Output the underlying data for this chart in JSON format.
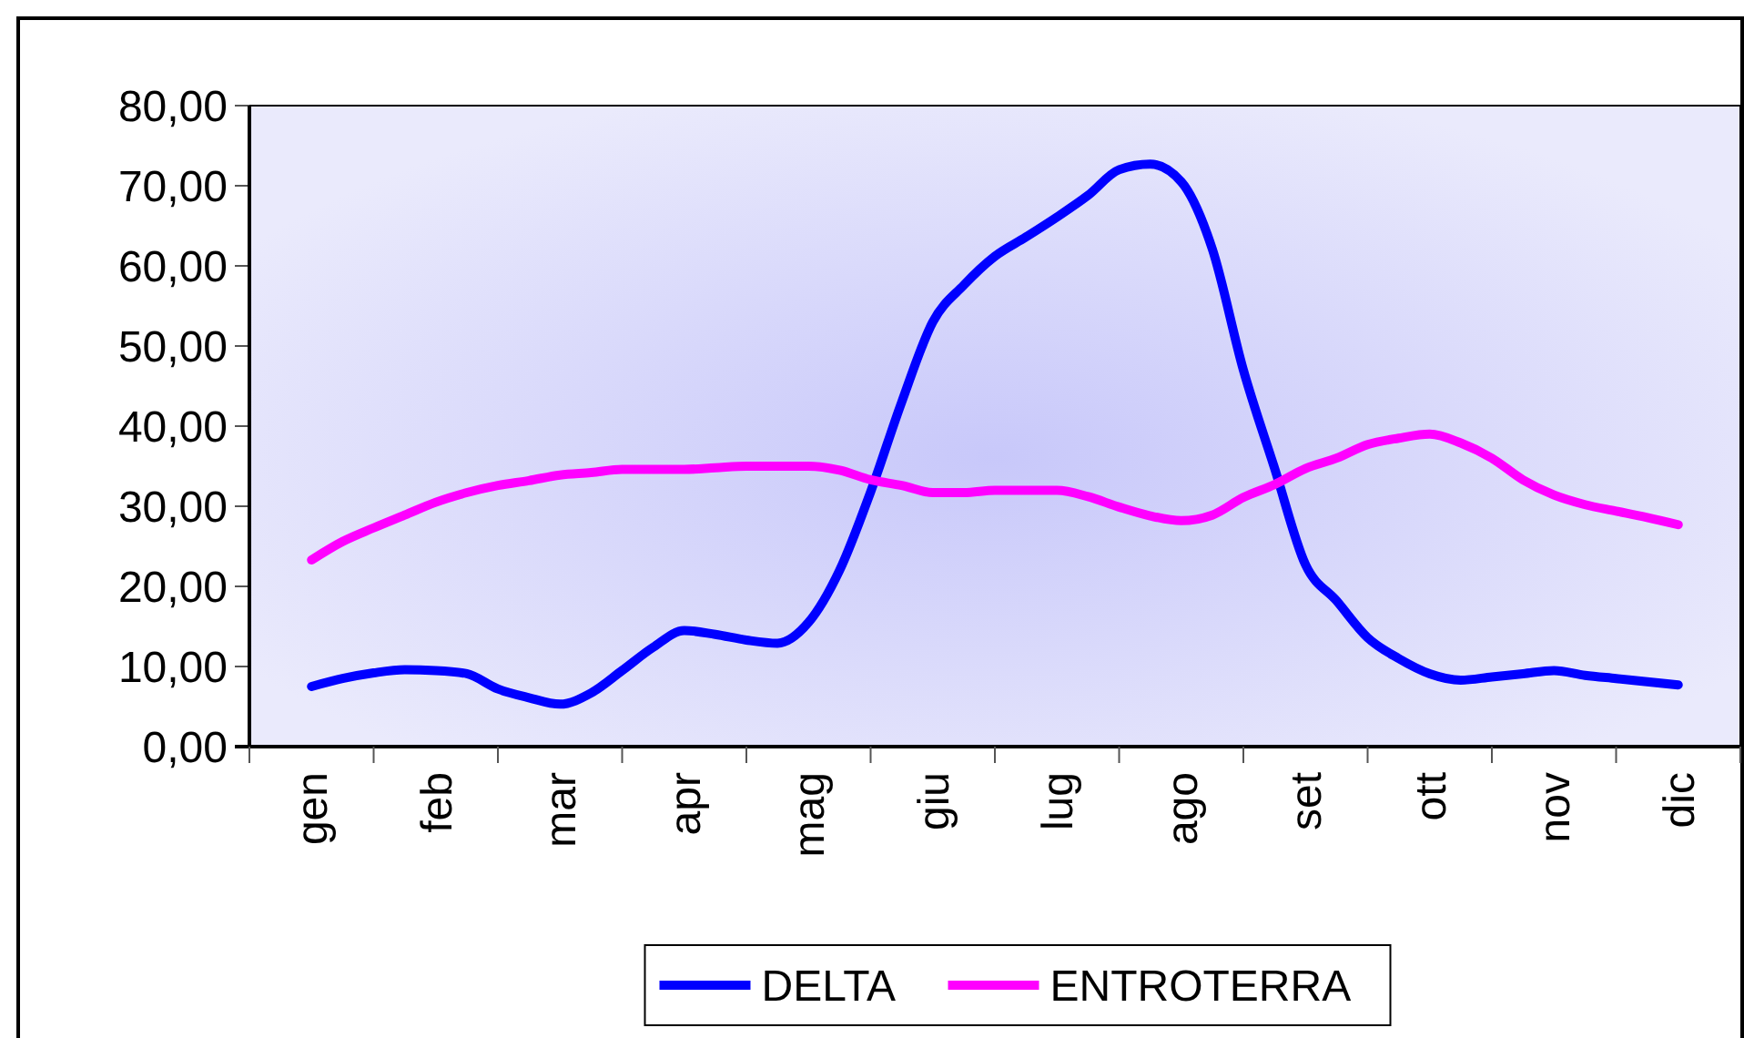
{
  "chart_data": {
    "type": "line",
    "categories": [
      "gen",
      null,
      null,
      null,
      "feb",
      null,
      null,
      null,
      "mar",
      null,
      null,
      null,
      "apr",
      null,
      null,
      null,
      "mag",
      null,
      null,
      null,
      "giu",
      null,
      null,
      null,
      "lug",
      null,
      null,
      null,
      "ago",
      null,
      null,
      null,
      "set",
      null,
      null,
      null,
      "ott",
      null,
      null,
      null,
      "nov",
      null,
      null,
      null,
      "dic"
    ],
    "series": [
      {
        "name": "DELTA",
        "color": "#0000ff",
        "values": [
          7.5,
          8.5,
          9.2,
          9.6,
          9.5,
          9.1,
          7.2,
          6.1,
          5.3,
          6.7,
          9.5,
          12.4,
          14.5,
          14.0,
          13.3,
          12.9,
          15.5,
          22.0,
          31.8,
          43.0,
          53.0,
          57.6,
          61.2,
          63.6,
          66.1,
          68.8,
          72.0,
          72.7,
          70.5,
          62.1,
          47.0,
          34.8,
          22.7,
          18.2,
          13.6,
          11.0,
          9.1,
          8.3,
          8.7,
          9.1,
          9.5,
          8.9,
          8.5,
          8.1,
          7.7
        ]
      },
      {
        "name": "ENTROTERRA",
        "color": "#ff00ff",
        "values": [
          23.3,
          25.6,
          27.3,
          28.9,
          30.5,
          31.7,
          32.6,
          33.2,
          33.9,
          34.2,
          34.6,
          34.6,
          34.6,
          34.8,
          35.0,
          35.0,
          35.0,
          34.5,
          33.3,
          32.6,
          31.7,
          31.7,
          32.0,
          32.0,
          32.0,
          31.2,
          29.9,
          28.8,
          28.2,
          28.9,
          31.1,
          32.7,
          34.7,
          36.0,
          37.7,
          38.5,
          39.0,
          37.9,
          36.0,
          33.3,
          31.4,
          30.2,
          29.4,
          28.6,
          27.7
        ]
      }
    ],
    "ylim": [
      0,
      80
    ],
    "yticks": [
      {
        "value": 0,
        "label": "0,00"
      },
      {
        "value": 10,
        "label": "10,00"
      },
      {
        "value": 20,
        "label": "20,00"
      },
      {
        "value": 30,
        "label": "30,00"
      },
      {
        "value": 40,
        "label": "40,00"
      },
      {
        "value": 50,
        "label": "50,00"
      },
      {
        "value": 60,
        "label": "60,00"
      },
      {
        "value": 70,
        "label": "70,00"
      },
      {
        "value": 80,
        "label": "80,00"
      }
    ],
    "legend": "bottom",
    "marker": "none",
    "line_style": "solid"
  }
}
